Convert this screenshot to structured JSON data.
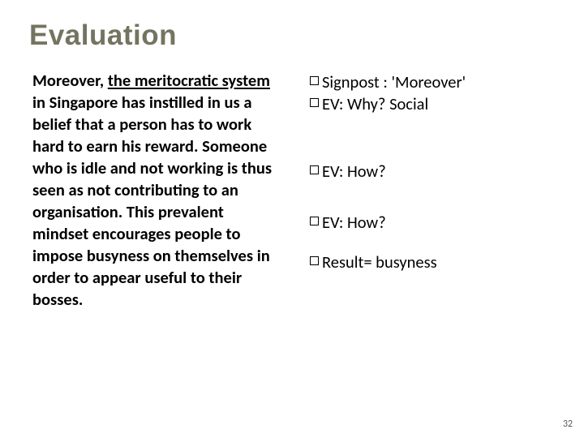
{
  "title": "Evaluation",
  "left": {
    "pre": "Moreover, ",
    "underlined": "the meritocratic system",
    "post": " in Singapore has instilled in us a belief that a person has to work hard to earn his reward. Someone who is idle and not working is thus seen as not contributing to an organisation. This prevalent mindset encourages people to impose busyness on themselves in order to appear useful to their bosses."
  },
  "right": {
    "items": [
      "Signpost : 'Moreover'",
      "EV: Why? Social",
      "EV: How?",
      "EV: How?",
      "Result= busyness"
    ]
  },
  "page": "32",
  "colors": {
    "title": "#757460",
    "text": "#000000",
    "bg": "#ffffff"
  },
  "fonts": {
    "title_size": 35,
    "body_size": 20.5
  }
}
